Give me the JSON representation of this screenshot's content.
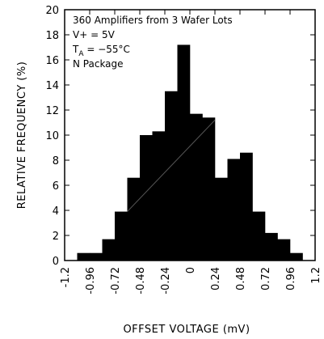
{
  "chart_data": {
    "type": "bar",
    "title": "",
    "xlabel": "OFFSET VOLTAGE (mV)",
    "ylabel": "RELATIVE FREQUENCY (%)",
    "xlim": [
      -1.2,
      1.2
    ],
    "ylim": [
      0,
      20
    ],
    "x_ticks": [
      "-1.2",
      "-0.96",
      "-0.72",
      "-0.48",
      "-0.24",
      "0",
      "0.24",
      "0.48",
      "0.72",
      "0.96",
      "1.2"
    ],
    "y_ticks": [
      "0",
      "2",
      "4",
      "6",
      "8",
      "10",
      "12",
      "14",
      "16",
      "18",
      "20"
    ],
    "bin_width": 0.12,
    "bins": [
      {
        "x0": -1.08,
        "value": 0.6
      },
      {
        "x0": -0.96,
        "value": 0.6
      },
      {
        "x0": -0.84,
        "value": 1.7
      },
      {
        "x0": -0.72,
        "value": 3.9
      },
      {
        "x0": -0.6,
        "value": 6.6
      },
      {
        "x0": -0.48,
        "value": 10.0
      },
      {
        "x0": -0.36,
        "value": 10.3
      },
      {
        "x0": -0.24,
        "value": 13.5
      },
      {
        "x0": -0.12,
        "value": 17.2
      },
      {
        "x0": 0.0,
        "value": 11.7
      },
      {
        "x0": 0.12,
        "value": 11.4
      },
      {
        "x0": 0.24,
        "value": 6.6
      },
      {
        "x0": 0.36,
        "value": 8.1
      },
      {
        "x0": 0.48,
        "value": 8.6
      },
      {
        "x0": 0.6,
        "value": 3.9
      },
      {
        "x0": 0.72,
        "value": 2.2
      },
      {
        "x0": 0.84,
        "value": 1.7
      },
      {
        "x0": 0.96,
        "value": 0.6
      }
    ],
    "grid": false,
    "annotation": {
      "line1": "360 Amplifiers from 3 Wafer Lots",
      "line2": "V+ = 5V",
      "line3_main": "T",
      "line3_sub": "A",
      "line3_rest": " = −55°C",
      "line4": "N Package"
    }
  }
}
